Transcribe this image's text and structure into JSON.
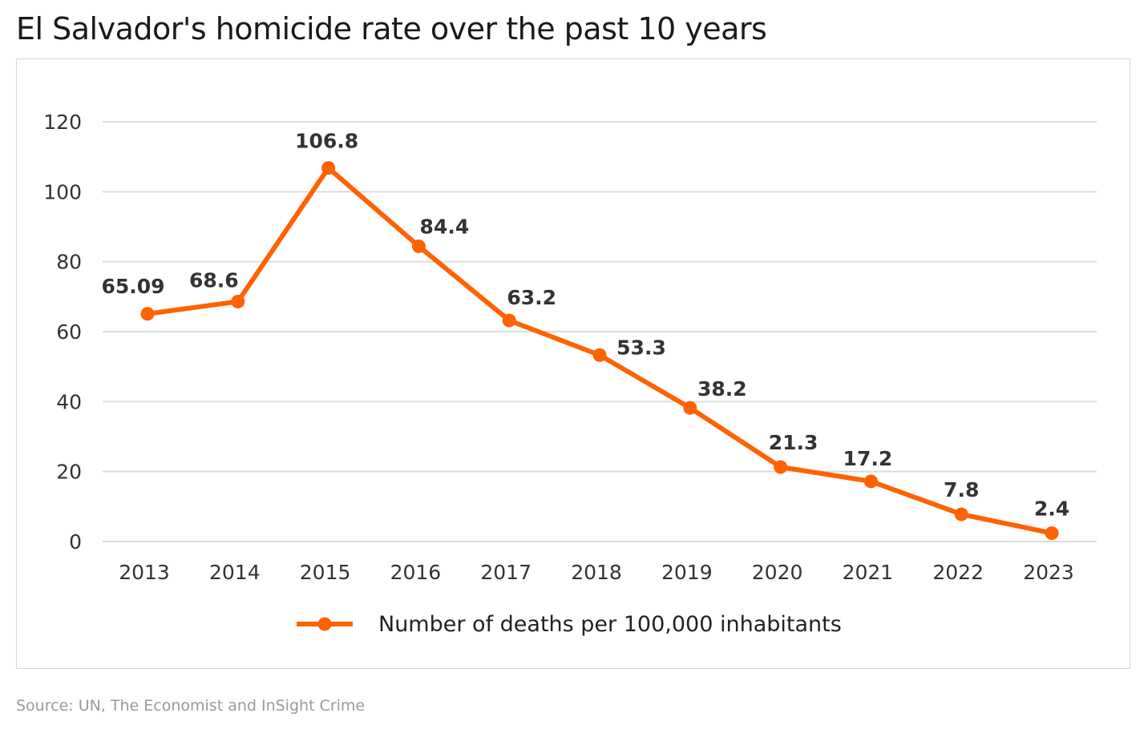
{
  "title": "El Salvador's homicide rate over the past 10 years",
  "source": "Source: UN, The Economist and InSight Crime",
  "chart_data": {
    "type": "line",
    "title": "El Salvador's homicide rate over the past 10 years",
    "xlabel": "",
    "ylabel": "",
    "ylim": [
      0,
      120
    ],
    "yticks": [
      0,
      20,
      40,
      60,
      80,
      100,
      120
    ],
    "grid": true,
    "legend_position": "bottom",
    "categories": [
      "2013",
      "2014",
      "2015",
      "2016",
      "2017",
      "2018",
      "2019",
      "2020",
      "2021",
      "2022",
      "2023"
    ],
    "series": [
      {
        "name": "Number of deaths per 100,000 inhabitants",
        "color": "#FF6200",
        "values": [
          65.09,
          68.6,
          106.8,
          84.4,
          63.2,
          53.3,
          38.2,
          21.3,
          17.2,
          7.8,
          2.4
        ],
        "labels": [
          "65.09",
          "68.6",
          "106.8",
          "84.4",
          "63.2",
          "53.3",
          "38.2",
          "21.3",
          "17.2",
          "7.8",
          "2.4"
        ]
      }
    ]
  }
}
